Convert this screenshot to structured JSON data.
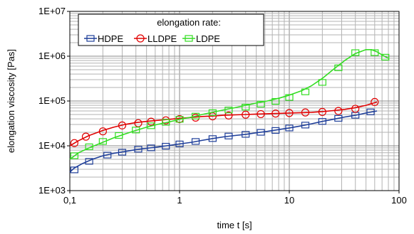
{
  "chart_data": {
    "type": "line",
    "title": "",
    "xlabel": "time t [s]",
    "ylabel": "elongation viscosity [Pas]",
    "x_scale": "log",
    "y_scale": "log",
    "xlim": [
      0.1,
      100
    ],
    "ylim": [
      1000,
      10000000
    ],
    "x_ticks": [
      {
        "value": 0.1,
        "label": "0,1"
      },
      {
        "value": 1,
        "label": "1"
      },
      {
        "value": 10,
        "label": "10"
      },
      {
        "value": 100,
        "label": "100"
      }
    ],
    "y_ticks": [
      {
        "value": 1000,
        "label": "1E+03"
      },
      {
        "value": 10000,
        "label": "1E+04"
      },
      {
        "value": 100000,
        "label": "1E+05"
      },
      {
        "value": 1000000,
        "label": "1E+06"
      },
      {
        "value": 10000000,
        "label": "1E+07"
      }
    ],
    "grid": true,
    "legend": {
      "title": "elongation rate:",
      "placement": "top-left"
    },
    "series": [
      {
        "name": "HDPE",
        "color": "#1f3f9a",
        "marker": "square",
        "x": [
          0.1,
          0.11,
          0.13,
          0.16,
          0.2,
          0.25,
          0.32,
          0.4,
          0.5,
          0.63,
          0.8,
          1.0,
          1.3,
          1.6,
          2.0,
          2.5,
          3.2,
          4.0,
          5.0,
          6.3,
          8.0,
          10,
          13,
          16,
          20,
          25,
          32,
          40,
          50,
          63
        ],
        "y": [
          2600,
          3200,
          4000,
          5000,
          6000,
          6800,
          7500,
          8200,
          8800,
          9400,
          10200,
          11000,
          12000,
          13200,
          14500,
          15800,
          17000,
          18000,
          19500,
          21000,
          23000,
          25000,
          28000,
          31000,
          35000,
          39000,
          44000,
          48000,
          54000,
          60000
        ],
        "marker_x": [
          0.11,
          0.15,
          0.22,
          0.3,
          0.42,
          0.55,
          0.75,
          1.0,
          1.4,
          2.0,
          2.8,
          4.0,
          5.5,
          7.5,
          10,
          14,
          20,
          28,
          40,
          55
        ],
        "marker_y": [
          2900,
          4500,
          6200,
          7200,
          8400,
          9000,
          9800,
          11000,
          12500,
          14500,
          16500,
          18000,
          20000,
          22000,
          25000,
          29000,
          35000,
          41000,
          48000,
          57000
        ]
      },
      {
        "name": "LLDPE",
        "color": "#e00000",
        "marker": "circle",
        "x": [
          0.1,
          0.12,
          0.15,
          0.2,
          0.25,
          0.32,
          0.4,
          0.5,
          0.63,
          0.8,
          1.0,
          1.3,
          1.6,
          2.0,
          2.5,
          3.2,
          4.0,
          5.0,
          6.3,
          8.0,
          10,
          13,
          16,
          20,
          25,
          32,
          40,
          50,
          63
        ],
        "y": [
          10000,
          13000,
          17000,
          22000,
          26000,
          30000,
          33000,
          35000,
          37000,
          39000,
          41000,
          43000,
          45000,
          46000,
          48000,
          49000,
          50000,
          51000,
          52000,
          53000,
          54000,
          55000,
          56000,
          58000,
          61000,
          65000,
          71000,
          80000,
          95000
        ],
        "marker_x": [
          0.11,
          0.14,
          0.2,
          0.3,
          0.42,
          0.55,
          0.75,
          1.0,
          1.4,
          2.0,
          2.8,
          4.0,
          5.5,
          7.5,
          10,
          14,
          20,
          28,
          40,
          60
        ],
        "marker_y": [
          11500,
          16000,
          21000,
          28500,
          32000,
          34500,
          37000,
          39500,
          42500,
          45500,
          47500,
          49500,
          51000,
          52500,
          54000,
          55500,
          57000,
          60000,
          67000,
          95000
        ]
      },
      {
        "name": "LDPE",
        "color": "#33dd22",
        "marker": "square",
        "x": [
          0.1,
          0.12,
          0.15,
          0.2,
          0.25,
          0.32,
          0.4,
          0.5,
          0.63,
          0.8,
          1.0,
          1.3,
          1.6,
          2.0,
          2.5,
          3.2,
          4.0,
          5.0,
          6.3,
          8.0,
          10,
          13,
          16,
          20,
          25,
          32,
          40,
          50,
          56,
          63,
          71,
          80
        ],
        "y": [
          5000,
          7000,
          9000,
          12000,
          15000,
          18500,
          22000,
          26000,
          30000,
          34000,
          39000,
          44000,
          50000,
          56000,
          63000,
          71000,
          80000,
          90000,
          100000,
          115000,
          135000,
          170000,
          220000,
          320000,
          500000,
          800000,
          1150000,
          1400000,
          1400000,
          1250000,
          1050000,
          900000
        ],
        "marker_x": [
          0.11,
          0.15,
          0.2,
          0.28,
          0.4,
          0.55,
          0.75,
          1.0,
          1.4,
          2.0,
          2.8,
          4.0,
          5.5,
          7.5,
          10,
          14,
          20,
          28,
          40,
          60,
          75
        ],
        "marker_y": [
          6000,
          9500,
          12500,
          17000,
          22500,
          28000,
          33500,
          39000,
          46000,
          55000,
          63000,
          73000,
          85000,
          98000,
          120000,
          160000,
          260000,
          550000,
          1200000,
          1200000,
          950000
        ]
      }
    ]
  }
}
